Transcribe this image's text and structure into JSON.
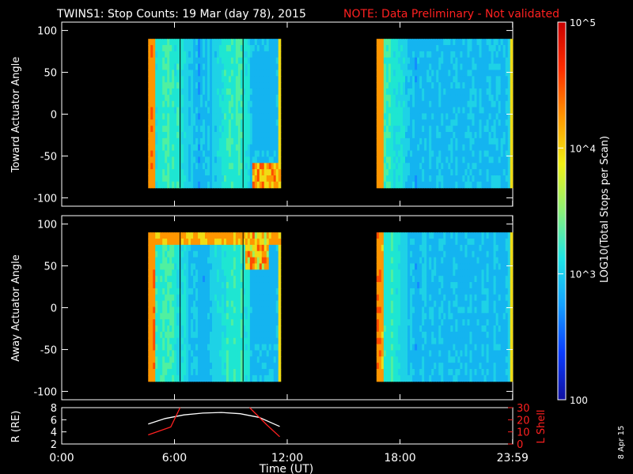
{
  "header": {
    "title": "TWINS1: Stop Counts: 19 Mar (day  78), 2015",
    "note": "NOTE: Data Preliminary - Not validated"
  },
  "side_date": "8 Apr 15",
  "colorbar": {
    "label": "LOG10(Total Stops per Scan)",
    "ticks": [
      "10^5",
      "10^4",
      "10^3",
      "100"
    ],
    "gradient": [
      "#1010a0",
      "#0a3cff",
      "#14a0ff",
      "#1ee6e6",
      "#8cf078",
      "#f0f014",
      "#ff9600",
      "#ff2d00",
      "#c80000"
    ]
  },
  "chart_data": [
    {
      "type": "heatmap",
      "name": "toward",
      "ylabel": "Toward Actuator Angle",
      "ylim": [
        -110,
        110
      ],
      "yticks": [
        100,
        50,
        0,
        -50,
        -100
      ],
      "data_x_hours": [
        [
          4.6,
          11.65
        ],
        [
          16.75,
          23.99
        ]
      ],
      "data_y": [
        -88,
        90
      ]
    },
    {
      "type": "heatmap",
      "name": "away",
      "ylabel": "Away Actuator Angle",
      "ylim": [
        -110,
        110
      ],
      "yticks": [
        100,
        50,
        0,
        -50,
        -100
      ],
      "data_x_hours": [
        [
          4.6,
          11.65
        ],
        [
          16.75,
          23.99
        ]
      ],
      "data_y": [
        -88,
        90
      ]
    },
    {
      "type": "line",
      "name": "orbit",
      "ylabel": "R (RE)",
      "y2label": "L Shell",
      "ylim": [
        2,
        8
      ],
      "yticks": [
        "8",
        "6",
        "4",
        "2"
      ],
      "y2lim": [
        0,
        30
      ],
      "y2ticks": [
        "30",
        "20",
        "10",
        "0"
      ],
      "xlim": [
        0,
        24
      ],
      "xticks": [
        "0:00",
        "6:00",
        "12:00",
        "18:00",
        "23:59"
      ],
      "xlabel": "Time (UT)",
      "series": [
        {
          "color": "#ffffff",
          "x": [
            4.6,
            5.5,
            6.5,
            7.5,
            8.5,
            9.5,
            10.5,
            11.6
          ],
          "y": [
            5.3,
            6.2,
            6.8,
            7.1,
            7.2,
            7.0,
            6.4,
            4.9
          ]
        },
        {
          "color": "#ff2020",
          "axis": "y2",
          "x": [
            4.6,
            5.8,
            6.3
          ],
          "y": [
            7.5,
            14,
            30
          ]
        },
        {
          "color": "#ff2020",
          "axis": "y2",
          "x": [
            10.0,
            10.9,
            11.6
          ],
          "y": [
            30,
            16,
            6
          ]
        }
      ]
    }
  ]
}
